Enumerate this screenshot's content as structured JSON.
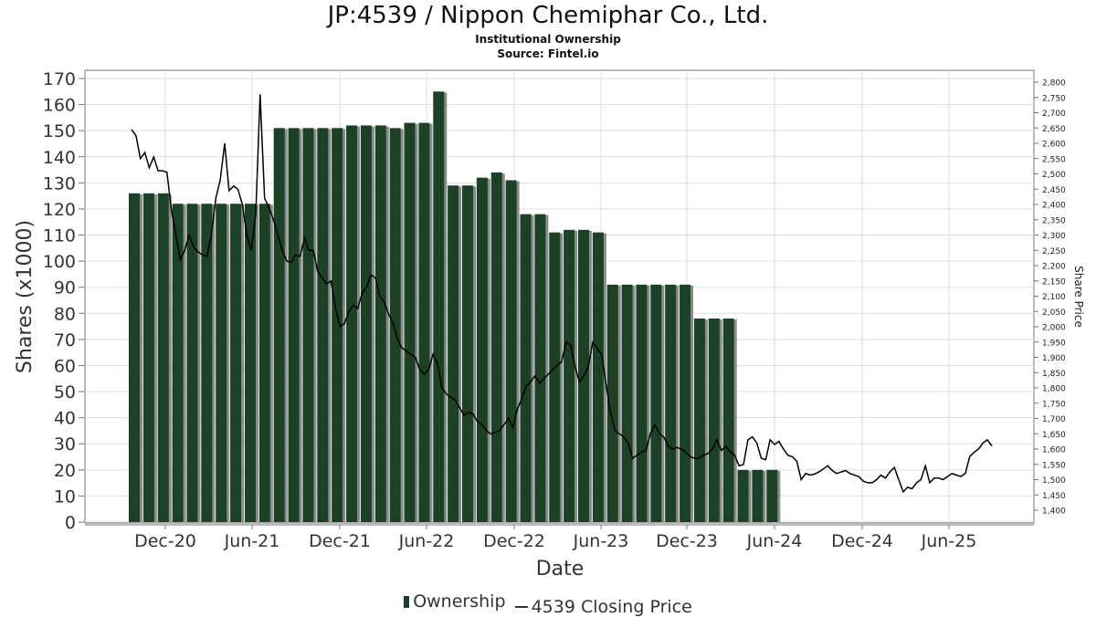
{
  "header": {
    "title": "JP:4539 / Nippon Chemiphar Co., Ltd.",
    "subtitle": "Institutional Ownership",
    "source": "Source: Fintel.io"
  },
  "legend": {
    "ownership_label": "Ownership",
    "price_label": "4539 Closing Price"
  },
  "colors": {
    "bar": "#1b4224",
    "bar_shadow": "#8a8a8a",
    "price_line": "#000000",
    "grid": "#dddddd"
  },
  "chart_data": {
    "type": "bar",
    "xlabel": "Date",
    "ylabel": "Shares (x1000)",
    "y2label": "Share Price",
    "ylim": [
      0,
      170
    ],
    "y2lim": [
      1375,
      2825
    ],
    "yticks": [
      0,
      10,
      20,
      30,
      40,
      50,
      60,
      70,
      80,
      90,
      100,
      110,
      120,
      130,
      140,
      150,
      160,
      170
    ],
    "y2ticks": [
      1400,
      1450,
      1500,
      1550,
      1600,
      1650,
      1700,
      1750,
      1800,
      1850,
      1900,
      1950,
      2000,
      2050,
      2100,
      2150,
      2200,
      2250,
      2300,
      2350,
      2400,
      2450,
      2500,
      2550,
      2600,
      2650,
      2700,
      2750,
      2800
    ],
    "y2tick_labels": [
      "1,400",
      "1,450",
      "1,500",
      "1,550",
      "1,600",
      "1,650",
      "1,700",
      "1,750",
      "1,800",
      "1,850",
      "1,900",
      "1,950",
      "2,000",
      "2,050",
      "2,100",
      "2,150",
      "2,200",
      "2,250",
      "2,300",
      "2,350",
      "2,400",
      "2,450",
      "2,500",
      "2,550",
      "2,600",
      "2,650",
      "2,700",
      "2,750",
      "2,800"
    ],
    "x_tick_labels": [
      "Dec-20",
      "Jun-21",
      "Dec-21",
      "Jun-22",
      "Dec-22",
      "Jun-23",
      "Dec-23",
      "Jun-24",
      "Dec-24",
      "Jun-25"
    ],
    "grid": true,
    "legend_position": "bottom-center",
    "series": [
      {
        "name": "Ownership",
        "kind": "bar",
        "values": [
          126,
          126,
          126,
          122,
          122,
          122,
          122,
          122,
          122,
          122,
          151,
          151,
          151,
          151,
          151,
          152,
          152,
          152,
          151,
          153,
          153,
          165,
          129,
          129,
          132,
          134,
          131,
          118,
          118,
          111,
          112,
          112,
          111,
          91,
          91,
          91,
          91,
          91,
          91,
          78,
          78,
          78,
          20,
          20,
          20
        ]
      },
      {
        "name": "4539 Closing Price",
        "kind": "line",
        "axis": "right",
        "values": [
          2645,
          2625,
          2550,
          2570,
          2520,
          2555,
          2510,
          2510,
          2505,
          2380,
          2300,
          2220,
          2250,
          2300,
          2260,
          2245,
          2235,
          2230,
          2300,
          2420,
          2480,
          2600,
          2445,
          2460,
          2450,
          2400,
          2300,
          2250,
          2365,
          2760,
          2420,
          2390,
          2350,
          2300,
          2250,
          2215,
          2210,
          2235,
          2230,
          2290,
          2250,
          2250,
          2180,
          2160,
          2140,
          2150,
          2060,
          2000,
          2010,
          2050,
          2070,
          2060,
          2110,
          2130,
          2170,
          2160,
          2100,
          2080,
          2040,
          2010,
          1960,
          1930,
          1920,
          1910,
          1900,
          1860,
          1845,
          1860,
          1910,
          1880,
          1800,
          1780,
          1770,
          1760,
          1735,
          1710,
          1720,
          1715,
          1690,
          1680,
          1660,
          1650,
          1655,
          1660,
          1680,
          1700,
          1670,
          1730,
          1765,
          1805,
          1820,
          1840,
          1815,
          1830,
          1845,
          1860,
          1875,
          1885,
          1950,
          1940,
          1870,
          1820,
          1840,
          1870,
          1950,
          1930,
          1910,
          1810,
          1720,
          1660,
          1650,
          1640,
          1620,
          1570,
          1580,
          1590,
          1595,
          1650,
          1680,
          1650,
          1640,
          1610,
          1600,
          1605,
          1600,
          1590,
          1575,
          1570,
          1570,
          1580,
          1585,
          1600,
          1630,
          1595,
          1610,
          1590,
          1580,
          1545,
          1550,
          1630,
          1640,
          1620,
          1570,
          1565,
          1630,
          1615,
          1625,
          1600,
          1580,
          1575,
          1560,
          1500,
          1520,
          1515,
          1518,
          1525,
          1535,
          1545,
          1530,
          1520,
          1525,
          1530,
          1520,
          1515,
          1510,
          1495,
          1490,
          1490,
          1500,
          1515,
          1505,
          1525,
          1540,
          1500,
          1460,
          1475,
          1470,
          1490,
          1500,
          1545,
          1490,
          1505,
          1505,
          1500,
          1510,
          1520,
          1515,
          1510,
          1520,
          1575,
          1590,
          1600,
          1620,
          1630,
          1610
        ]
      }
    ]
  }
}
